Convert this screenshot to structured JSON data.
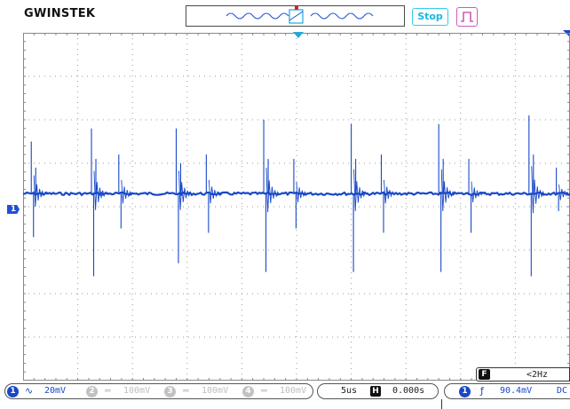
{
  "header": {
    "brand": "GWINSTEK",
    "run_state": "Stop"
  },
  "markers": {
    "channel1_label": "1"
  },
  "frequency_counter": {
    "badge": "F",
    "value": "<2Hz"
  },
  "channels": [
    {
      "num": "1",
      "coupling_symbol": "∿",
      "scale": "20mV",
      "active": true
    },
    {
      "num": "2",
      "coupling_symbol": "═",
      "scale": "100mV",
      "active": false
    },
    {
      "num": "3",
      "coupling_symbol": "═",
      "scale": "100mV",
      "active": false
    },
    {
      "num": "4",
      "coupling_symbol": "═",
      "scale": "100mV",
      "active": false
    }
  ],
  "timebase": {
    "scale": "5us",
    "mode_badge": "H",
    "position": "0.000s"
  },
  "trigger": {
    "source": "1",
    "slope_symbol": "ƒ",
    "level": "90.4mV",
    "coupling": "DC"
  },
  "colors": {
    "trace": "#1848c8",
    "grid_border": "#888888",
    "accent_cyan": "#1ca8e0",
    "accent_magenta": "#d25ab8"
  },
  "chart_data": {
    "type": "line",
    "title": "",
    "xlabel": "",
    "ylabel": "",
    "divisions": {
      "x": 10,
      "y": 8
    },
    "baseline_div": 0.3,
    "spike_bursts": [
      {
        "x_div": 0.15,
        "amps_div": [
          1.2,
          -1.0,
          0.6
        ]
      },
      {
        "x_div": 1.25,
        "amps_div": [
          1.5,
          -1.9,
          0.8
        ]
      },
      {
        "x_div": 1.75,
        "amps_div": [
          0.9,
          -0.8
        ]
      },
      {
        "x_div": 2.8,
        "amps_div": [
          1.5,
          -1.6,
          0.7
        ]
      },
      {
        "x_div": 3.35,
        "amps_div": [
          0.9,
          -0.9
        ]
      },
      {
        "x_div": 4.4,
        "amps_div": [
          1.7,
          -1.8,
          0.8
        ]
      },
      {
        "x_div": 4.95,
        "amps_div": [
          0.8,
          -0.8
        ]
      },
      {
        "x_div": 6.0,
        "amps_div": [
          1.6,
          -1.8,
          0.8
        ]
      },
      {
        "x_div": 6.55,
        "amps_div": [
          0.9,
          -0.9
        ]
      },
      {
        "x_div": 7.6,
        "amps_div": [
          1.6,
          -1.8,
          0.8
        ]
      },
      {
        "x_div": 8.15,
        "amps_div": [
          0.8,
          -0.9
        ]
      },
      {
        "x_div": 9.25,
        "amps_div": [
          1.8,
          -1.9,
          0.9
        ]
      },
      {
        "x_div": 9.75,
        "amps_div": [
          0.6,
          -0.4
        ]
      }
    ]
  }
}
